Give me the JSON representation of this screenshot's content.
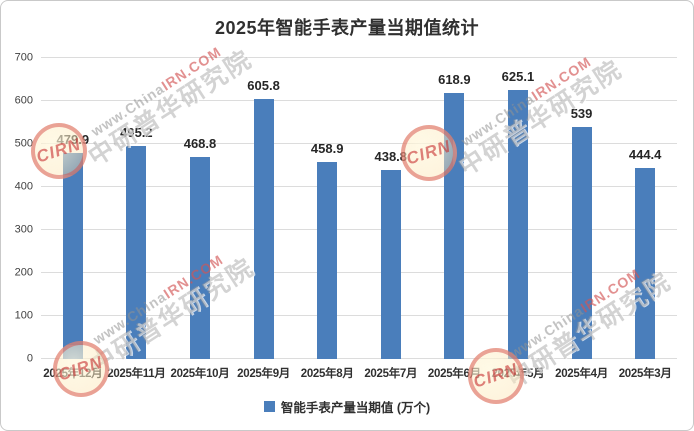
{
  "chart_data": {
    "type": "bar",
    "title": "2025年智能手表产量当期值统计",
    "categories": [
      "2025年12月",
      "2025年11月",
      "2025年10月",
      "2025年9月",
      "2025年8月",
      "2025年7月",
      "2025年6月",
      "2025年5月",
      "2025年4月",
      "2025年3月"
    ],
    "values": [
      479.9,
      495.2,
      468.8,
      605.8,
      458.9,
      438.8,
      618.9,
      625.1,
      539,
      444.4
    ],
    "series_name": "智能手表产量当期值 (万个)",
    "xlabel": "",
    "ylabel": "",
    "ylim": [
      0,
      700
    ],
    "yticks": [
      0,
      100,
      200,
      300,
      400,
      500,
      600,
      700
    ],
    "bar_color": "#4A7EBB",
    "grid": true,
    "data_labels": true,
    "legend_position": "bottom"
  },
  "legend": {
    "label": "智能手表产量当期值 (万个)",
    "color": "#4A7EBB"
  },
  "watermark": {
    "line1_gray": "www.China",
    "line1_red": "IRN.COM",
    "line2": "中研普华研究院",
    "logo_text": "CIRN"
  }
}
